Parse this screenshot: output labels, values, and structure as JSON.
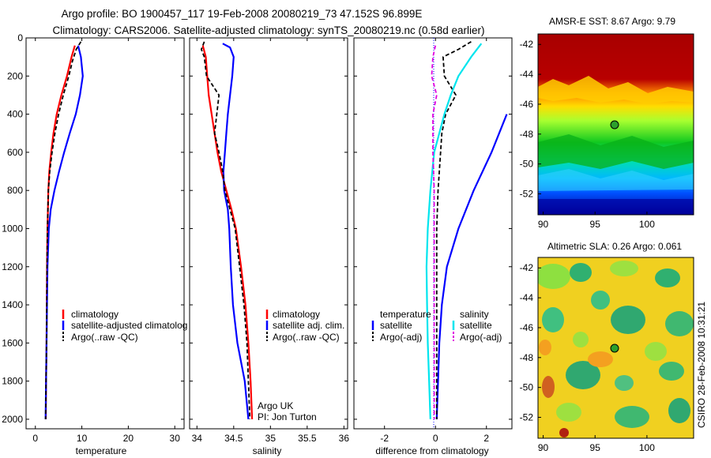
{
  "title_line1": "Argo profile: BO 1900457_117 19-Feb-2008 20080219_73 47.152S 96.899E",
  "title_line2": "Climatology: CARS2006. Satellite-adjusted climatology: synTS_20080219.nc (0.58d earlier)",
  "side_label": "CSIRO 28-Feb-2008 10:31:21",
  "panels": {
    "temperature": {
      "xlabel": "temperature",
      "xticks": [
        "0",
        "10",
        "20",
        "30"
      ],
      "legend": [
        "climatology",
        "satellite-adjusted climatolog",
        "Argo(..raw -QC)"
      ]
    },
    "salinity": {
      "xlabel": "salinity",
      "xticks": [
        "34",
        "34.5",
        "35",
        "35.5",
        "36"
      ],
      "legend": [
        "climatology",
        "satellite adj. clim.",
        "Argo(..raw -QC)"
      ],
      "note1": "Argo UK",
      "note2": "PI: Jon Turton"
    },
    "difference": {
      "xlabel": "difference from climatology",
      "xticks": [
        "-2",
        "0",
        "2"
      ],
      "legend_temp_title": "temperature",
      "legend_temp": [
        "satellite",
        "Argo(-adj)"
      ],
      "legend_sal_title": "salinity",
      "legend_sal": [
        "satellite",
        "Argo(-adj)"
      ]
    },
    "sst_map": {
      "title": "AMSR-E SST: 8.67 Argo: 9.79",
      "yticks": [
        "-42",
        "-44",
        "-46",
        "-48",
        "-50",
        "-52"
      ],
      "xticks": [
        "90",
        "95",
        "100"
      ]
    },
    "sla_map": {
      "title": "Altimetric SLA: 0.26 Argo: 0.061",
      "yticks": [
        "-42",
        "-44",
        "-46",
        "-48",
        "-50",
        "-52"
      ],
      "xticks": [
        "90",
        "95",
        "100"
      ]
    }
  },
  "depth_ticks": [
    "0",
    "200",
    "400",
    "600",
    "800",
    "1000",
    "1200",
    "1400",
    "1600",
    "1800",
    "2000"
  ],
  "colors": {
    "climatology": "#ff0000",
    "satellite": "#0000ff",
    "argo": "#000000",
    "sal_satellite": "#00e5ee",
    "sal_argo": "#e000e0"
  },
  "chart_data": [
    {
      "type": "line",
      "panel": "temperature",
      "xlim": [
        -2,
        32
      ],
      "ylim": [
        0,
        2050
      ],
      "y_reversed": true,
      "ylabel": "",
      "series": [
        {
          "name": "climatology",
          "color": "#ff0000",
          "style": "solid",
          "points": [
            [
              8.5,
              40
            ],
            [
              7.8,
              100
            ],
            [
              6.8,
              200
            ],
            [
              5.6,
              300
            ],
            [
              4.6,
              400
            ],
            [
              3.9,
              500
            ],
            [
              3.4,
              600
            ],
            [
              3.0,
              700
            ],
            [
              2.8,
              800
            ],
            [
              2.6,
              1000
            ],
            [
              2.5,
              1200
            ],
            [
              2.45,
              1400
            ],
            [
              2.4,
              1600
            ],
            [
              2.3,
              1800
            ],
            [
              2.25,
              2000
            ]
          ]
        },
        {
          "name": "satellite-adjusted climatolog",
          "color": "#0000ff",
          "style": "solid",
          "points": [
            [
              9.2,
              40
            ],
            [
              9.8,
              100
            ],
            [
              10.2,
              200
            ],
            [
              9.6,
              300
            ],
            [
              8.7,
              400
            ],
            [
              7.4,
              500
            ],
            [
              6.2,
              600
            ],
            [
              5.1,
              700
            ],
            [
              4.1,
              800
            ],
            [
              3.3,
              900
            ],
            [
              2.9,
              1000
            ],
            [
              2.6,
              1200
            ],
            [
              2.5,
              1400
            ],
            [
              2.4,
              1600
            ],
            [
              2.3,
              1800
            ],
            [
              2.2,
              2000
            ]
          ]
        },
        {
          "name": "Argo(..raw -QC)",
          "color": "#000000",
          "style": "dashed",
          "points": [
            [
              9.8,
              20
            ],
            [
              8.8,
              60
            ],
            [
              8.0,
              120
            ],
            [
              7.2,
              200
            ],
            [
              6.0,
              300
            ],
            [
              5.0,
              400
            ],
            [
              4.2,
              500
            ],
            [
              3.6,
              600
            ],
            [
              3.1,
              700
            ],
            [
              2.8,
              800
            ],
            [
              2.6,
              1000
            ],
            [
              2.5,
              1200
            ],
            [
              2.45,
              1400
            ],
            [
              2.4,
              1600
            ],
            [
              2.3,
              1800
            ],
            [
              2.2,
              2000
            ]
          ]
        }
      ]
    },
    {
      "type": "line",
      "panel": "salinity",
      "xlim": [
        33.9,
        36.05
      ],
      "ylim": [
        0,
        2050
      ],
      "y_reversed": true,
      "series": [
        {
          "name": "climatology",
          "color": "#ff0000",
          "style": "solid",
          "points": [
            [
              34.08,
              40
            ],
            [
              34.12,
              100
            ],
            [
              34.14,
              200
            ],
            [
              34.16,
              300
            ],
            [
              34.2,
              400
            ],
            [
              34.24,
              500
            ],
            [
              34.28,
              600
            ],
            [
              34.33,
              700
            ],
            [
              34.4,
              800
            ],
            [
              34.47,
              900
            ],
            [
              34.53,
              1000
            ],
            [
              34.6,
              1200
            ],
            [
              34.66,
              1400
            ],
            [
              34.7,
              1600
            ],
            [
              34.73,
              1800
            ],
            [
              34.75,
              2000
            ]
          ]
        },
        {
          "name": "satellite adj. clim.",
          "color": "#0000ff",
          "style": "solid",
          "points": [
            [
              34.35,
              30
            ],
            [
              34.45,
              50
            ],
            [
              34.5,
              100
            ],
            [
              34.48,
              200
            ],
            [
              34.45,
              300
            ],
            [
              34.42,
              400
            ],
            [
              34.4,
              500
            ],
            [
              34.38,
              600
            ],
            [
              34.36,
              700
            ],
            [
              34.37,
              800
            ],
            [
              34.42,
              900
            ],
            [
              34.44,
              1000
            ],
            [
              34.46,
              1200
            ],
            [
              34.49,
              1400
            ],
            [
              34.55,
              1600
            ],
            [
              34.65,
              1800
            ],
            [
              34.7,
              2000
            ]
          ]
        },
        {
          "name": "Argo(..raw -QC)",
          "color": "#000000",
          "style": "dashed",
          "points": [
            [
              34.1,
              20
            ],
            [
              34.06,
              60
            ],
            [
              34.1,
              100
            ],
            [
              34.13,
              200
            ],
            [
              34.3,
              300
            ],
            [
              34.27,
              400
            ],
            [
              34.24,
              500
            ],
            [
              34.3,
              600
            ],
            [
              34.35,
              700
            ],
            [
              34.38,
              800
            ],
            [
              34.45,
              900
            ],
            [
              34.52,
              1000
            ],
            [
              34.58,
              1200
            ],
            [
              34.64,
              1400
            ],
            [
              34.68,
              1600
            ],
            [
              34.7,
              1800
            ],
            [
              34.72,
              2000
            ]
          ]
        }
      ]
    },
    {
      "type": "line",
      "panel": "difference",
      "xlim": [
        -3.2,
        3.0
      ],
      "ylim": [
        0,
        2050
      ],
      "y_reversed": true,
      "series": [
        {
          "name": "temperature satellite",
          "color": "#0000ff",
          "style": "solid",
          "points": [
            [
              2.8,
              400
            ],
            [
              2.2,
              600
            ],
            [
              1.5,
              800
            ],
            [
              0.9,
              1000
            ],
            [
              0.45,
              1200
            ],
            [
              0.25,
              1400
            ],
            [
              0.15,
              1600
            ],
            [
              0.1,
              1800
            ],
            [
              0.05,
              2000
            ]
          ]
        },
        {
          "name": "temperature Argo(-adj)",
          "color": "#000000",
          "style": "dashed",
          "points": [
            [
              1.4,
              20
            ],
            [
              0.9,
              60
            ],
            [
              0.3,
              100
            ],
            [
              0.35,
              200
            ],
            [
              0.8,
              300
            ],
            [
              0.4,
              400
            ],
            [
              0.25,
              500
            ],
            [
              0.2,
              600
            ],
            [
              0.1,
              800
            ],
            [
              0.05,
              1000
            ],
            [
              0.05,
              1400
            ],
            [
              0.05,
              2000
            ]
          ]
        },
        {
          "name": "salinity satellite",
          "color": "#00e5ee",
          "style": "solid",
          "points": [
            [
              1.8,
              30
            ],
            [
              1.4,
              100
            ],
            [
              0.9,
              200
            ],
            [
              0.6,
              300
            ],
            [
              0.35,
              400
            ],
            [
              0.15,
              500
            ],
            [
              -0.05,
              600
            ],
            [
              -0.2,
              800
            ],
            [
              -0.3,
              1000
            ],
            [
              -0.35,
              1200
            ],
            [
              -0.33,
              1400
            ],
            [
              -0.3,
              1600
            ],
            [
              -0.25,
              1800
            ],
            [
              -0.2,
              2000
            ]
          ]
        },
        {
          "name": "salinity Argo(-adj)",
          "color": "#e000e0",
          "style": "dashed",
          "points": [
            [
              0,
              40
            ],
            [
              -0.1,
              100
            ],
            [
              -0.15,
              200
            ],
            [
              0.05,
              300
            ],
            [
              -0.1,
              400
            ],
            [
              -0.1,
              600
            ],
            [
              -0.05,
              800
            ],
            [
              -0.05,
              1000
            ],
            [
              -0.05,
              1400
            ],
            [
              -0.05,
              2000
            ]
          ]
        }
      ]
    },
    {
      "type": "heatmap",
      "panel": "sst_map",
      "title": "AMSR-E SST: 8.67 Argo: 9.79",
      "xlim": [
        89.5,
        104.5
      ],
      "ylim": [
        -53.4,
        -41.3
      ],
      "argo_marker": [
        96.9,
        -47.15
      ]
    },
    {
      "type": "heatmap",
      "panel": "sla_map",
      "title": "Altimetric SLA: 0.26 Argo: 0.061",
      "xlim": [
        89.5,
        104.5
      ],
      "ylim": [
        -53.4,
        -41.3
      ],
      "argo_marker": [
        96.9,
        -47.15
      ]
    }
  ]
}
